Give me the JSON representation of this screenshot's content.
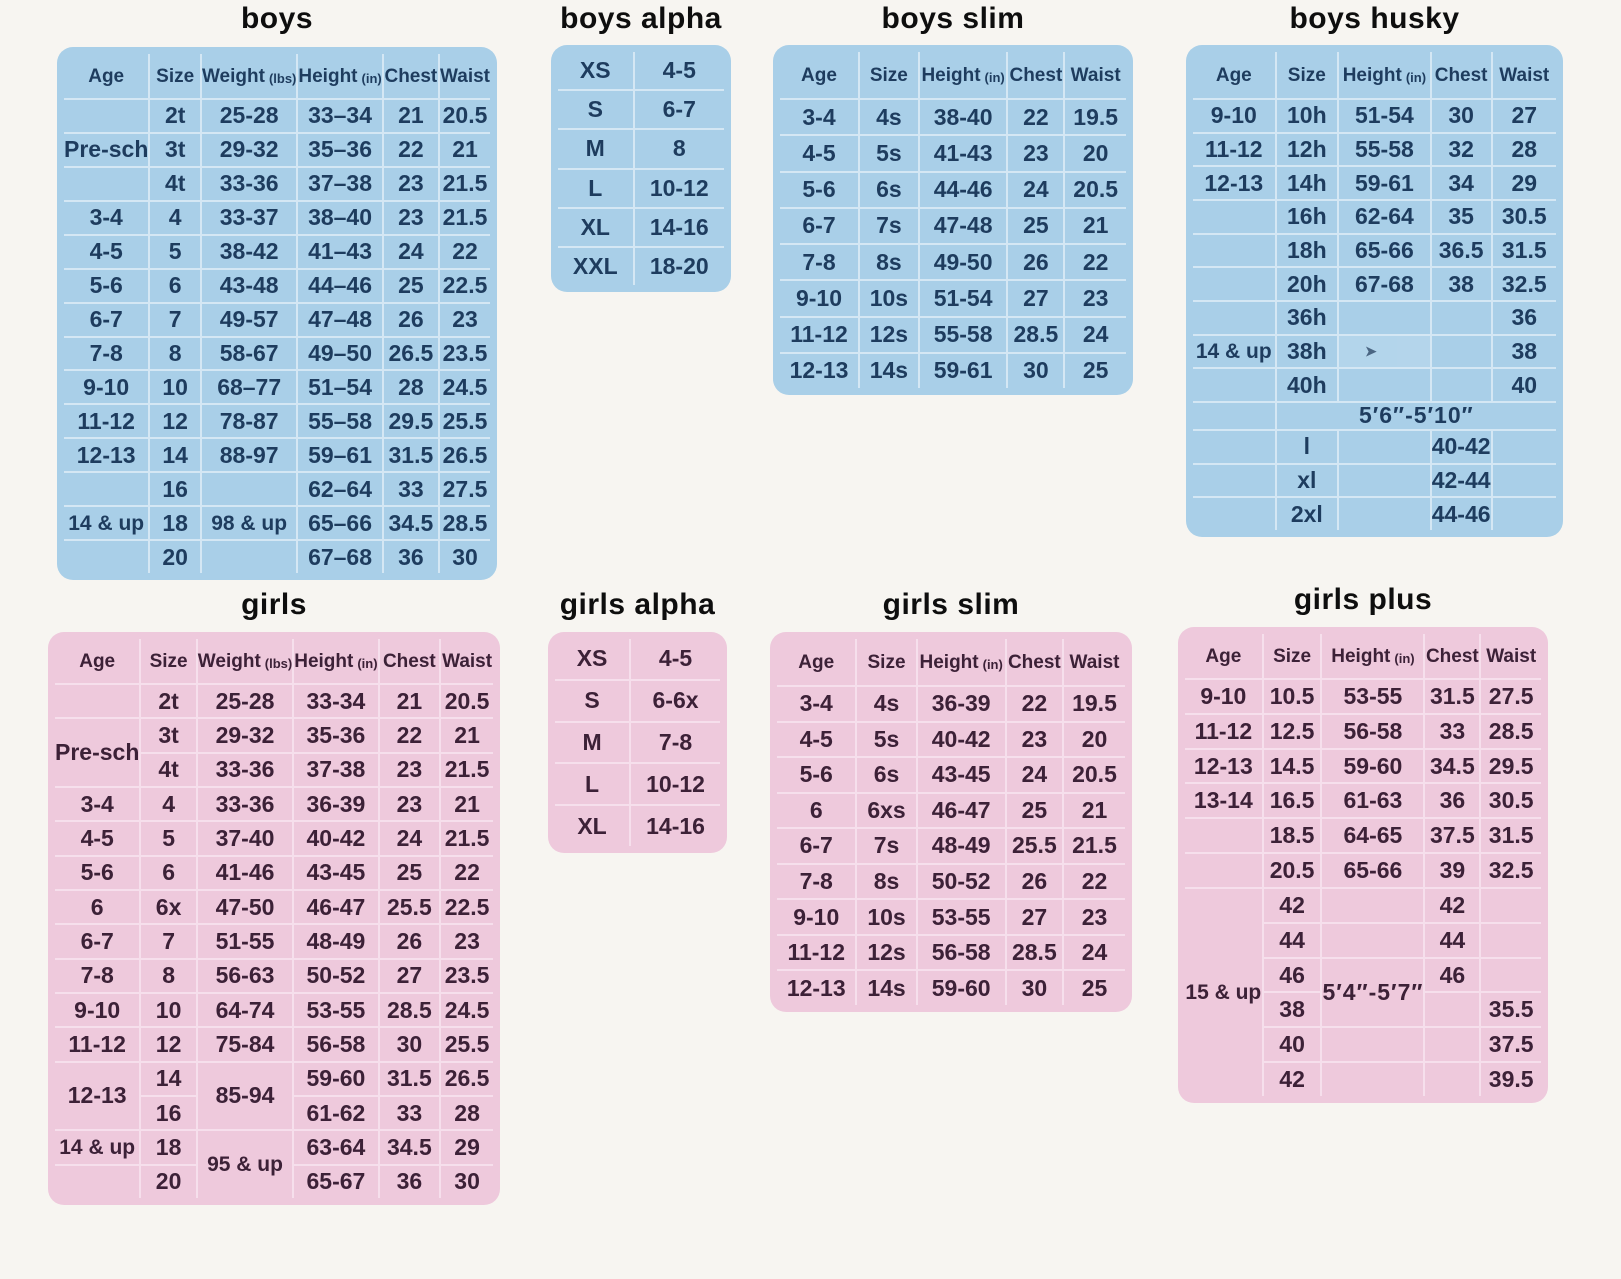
{
  "theme": {
    "paper": "#f7f5f1",
    "boys_bg": "#a9cfe8",
    "boys_line": "#d4e7f4",
    "boys_ink": "#1e3c5e",
    "girls_bg": "#eec9dc",
    "girls_line": "#f6dfec",
    "girls_ink": "#3c2137",
    "title_ink": "#0e0e0e"
  },
  "panels": {
    "boys": {
      "title": "boys",
      "header": true,
      "rows": [
        [
          "Age",
          "Size",
          {
            "t": "Weight",
            "sub": "(lbs)"
          },
          {
            "t": "Height",
            "sub": "(in)"
          },
          "Chest",
          "Waist"
        ],
        [
          "",
          "2t",
          "25-28",
          "33–34",
          "21",
          "20.5"
        ],
        [
          "Pre-sch",
          "3t",
          "29-32",
          "35–36",
          "22",
          "21"
        ],
        [
          "",
          "4t",
          "33-36",
          "37–38",
          "23",
          "21.5"
        ],
        [
          "3-4",
          "4",
          "33-37",
          "38–40",
          "23",
          "21.5"
        ],
        [
          "4-5",
          "5",
          "38-42",
          "41–43",
          "24",
          "22"
        ],
        [
          "5-6",
          "6",
          "43-48",
          "44–46",
          "25",
          "22.5"
        ],
        [
          "6-7",
          "7",
          "49-57",
          "47–48",
          "26",
          "23"
        ],
        [
          "7-8",
          "8",
          "58-67",
          "49–50",
          "26.5",
          "23.5"
        ],
        [
          "9-10",
          "10",
          "68–77",
          "51–54",
          "28",
          "24.5"
        ],
        [
          "11-12",
          "12",
          "78-87",
          "55–58",
          "29.5",
          "25.5"
        ],
        [
          "12-13",
          "14",
          "88-97",
          "59–61",
          "31.5",
          "26.5"
        ],
        [
          "",
          "16",
          "",
          "62–64",
          "33",
          "27.5"
        ],
        [
          {
            "t": "14 & up",
            "cls": "small"
          },
          "18",
          {
            "t": "98 & up",
            "cls": "small"
          },
          "65–66",
          "34.5",
          "28.5"
        ],
        [
          "",
          "20",
          "",
          "67–68",
          "36",
          "30"
        ]
      ]
    },
    "boys_alpha": {
      "title": "boys alpha",
      "header": false,
      "rows": [
        [
          "XS",
          "4-5"
        ],
        [
          "S",
          "6-7"
        ],
        [
          "M",
          "8"
        ],
        [
          "L",
          "10-12"
        ],
        [
          "XL",
          "14-16"
        ],
        [
          "XXL",
          "18-20"
        ]
      ]
    },
    "boys_slim": {
      "title": "boys slim",
      "header": true,
      "rows": [
        [
          "Age",
          "Size",
          {
            "t": "Height",
            "sub": "(in)"
          },
          "Chest",
          "Waist"
        ],
        [
          "3-4",
          "4s",
          "38-40",
          "22",
          "19.5"
        ],
        [
          "4-5",
          "5s",
          "41-43",
          "23",
          "20"
        ],
        [
          "5-6",
          "6s",
          "44-46",
          "24",
          "20.5"
        ],
        [
          "6-7",
          "7s",
          "47-48",
          "25",
          "21"
        ],
        [
          "7-8",
          "8s",
          "49-50",
          "26",
          "22"
        ],
        [
          "9-10",
          "10s",
          "51-54",
          "27",
          "23"
        ],
        [
          "11-12",
          "12s",
          "55-58",
          "28.5",
          "24"
        ],
        [
          "12-13",
          "14s",
          "59-61",
          "30",
          "25"
        ]
      ]
    },
    "boys_husky": {
      "title": "boys husky",
      "header": true,
      "rows": [
        [
          "Age",
          "Size",
          {
            "t": "Height",
            "sub": "(in)"
          },
          "Chest",
          "Waist"
        ],
        [
          "9-10",
          "10h",
          "51-54",
          "30",
          "27"
        ],
        [
          "11-12",
          "12h",
          "55-58",
          "32",
          "28"
        ],
        [
          "12-13",
          "14h",
          "59-61",
          "34",
          "29"
        ],
        [
          "",
          "16h",
          "62-64",
          "35",
          "30.5"
        ],
        [
          "",
          "18h",
          "65-66",
          "36.5",
          "31.5"
        ],
        [
          "",
          "20h",
          "67-68",
          "38",
          "32.5"
        ],
        [
          "",
          "36h",
          "",
          "",
          "36"
        ],
        [
          {
            "t": "14 & up",
            "cls": "small"
          },
          "38h",
          {
            "t": "➤",
            "cls": "arrow",
            "n": "arrow-mark"
          },
          "",
          "38"
        ],
        [
          "",
          "40h",
          "",
          "",
          "40"
        ],
        [
          "",
          {
            "t": "5′6″-5′10″",
            "cs": 4,
            "cls": "note",
            "n": "height-range-note"
          },
          null,
          null,
          null
        ],
        [
          "",
          "l",
          "",
          "40-42",
          ""
        ],
        [
          "",
          "xl",
          "",
          "42-44",
          ""
        ],
        [
          "",
          "2xl",
          "",
          "44-46",
          ""
        ]
      ]
    },
    "girls": {
      "title": "girls",
      "header": true,
      "rows": [
        [
          "Age",
          "Size",
          {
            "t": "Weight",
            "sub": "(lbs)"
          },
          {
            "t": "Height",
            "sub": "(in)"
          },
          "Chest",
          "Waist"
        ],
        [
          "",
          "2t",
          "25-28",
          "33-34",
          "21",
          "20.5"
        ],
        [
          {
            "t": "Pre-sch",
            "rs": 2
          },
          "3t",
          "29-32",
          "35-36",
          "22",
          "21"
        ],
        [
          null,
          "4t",
          "33-36",
          "37-38",
          "23",
          "21.5"
        ],
        [
          "3-4",
          "4",
          "33-36",
          "36-39",
          "23",
          "21"
        ],
        [
          "4-5",
          "5",
          "37-40",
          "40-42",
          "24",
          "21.5"
        ],
        [
          "5-6",
          "6",
          "41-46",
          "43-45",
          "25",
          "22"
        ],
        [
          "6",
          "6x",
          "47-50",
          "46-47",
          "25.5",
          "22.5"
        ],
        [
          "6-7",
          "7",
          "51-55",
          "48-49",
          "26",
          "23"
        ],
        [
          "7-8",
          "8",
          "56-63",
          "50-52",
          "27",
          "23.5"
        ],
        [
          "9-10",
          "10",
          "64-74",
          "53-55",
          "28.5",
          "24.5"
        ],
        [
          "11-12",
          "12",
          "75-84",
          "56-58",
          "30",
          "25.5"
        ],
        [
          {
            "t": "12-13",
            "rs": 2
          },
          "14",
          {
            "t": "85-94",
            "rs": 2
          },
          "59-60",
          "31.5",
          "26.5"
        ],
        [
          null,
          "16",
          null,
          "61-62",
          "33",
          "28"
        ],
        [
          {
            "t": "14 & up",
            "cls": "small"
          },
          "18",
          {
            "t": "95 & up",
            "rs": 2,
            "cls": "small"
          },
          "63-64",
          "34.5",
          "29"
        ],
        [
          "",
          "20",
          null,
          "65-67",
          "36",
          "30"
        ]
      ]
    },
    "girls_alpha": {
      "title": "girls alpha",
      "header": false,
      "rows": [
        [
          "XS",
          "4-5"
        ],
        [
          "S",
          "6-6x"
        ],
        [
          "M",
          "7-8"
        ],
        [
          "L",
          "10-12"
        ],
        [
          "XL",
          "14-16"
        ]
      ]
    },
    "girls_slim": {
      "title": "girls slim",
      "header": true,
      "rows": [
        [
          "Age",
          "Size",
          {
            "t": "Height",
            "sub": "(in)"
          },
          "Chest",
          "Waist"
        ],
        [
          "3-4",
          "4s",
          "36-39",
          "22",
          "19.5"
        ],
        [
          "4-5",
          "5s",
          "40-42",
          "23",
          "20"
        ],
        [
          "5-6",
          "6s",
          "43-45",
          "24",
          "20.5"
        ],
        [
          "6",
          "6xs",
          "46-47",
          "25",
          "21"
        ],
        [
          "6-7",
          "7s",
          "48-49",
          "25.5",
          "21.5"
        ],
        [
          "7-8",
          "8s",
          "50-52",
          "26",
          "22"
        ],
        [
          "9-10",
          "10s",
          "53-55",
          "27",
          "23"
        ],
        [
          "11-12",
          "12s",
          "56-58",
          "28.5",
          "24"
        ],
        [
          "12-13",
          "14s",
          "59-60",
          "30",
          "25"
        ]
      ]
    },
    "girls_plus": {
      "title": "girls plus",
      "header": true,
      "rows": [
        [
          "Age",
          "Size",
          {
            "t": "Height",
            "sub": "(in)"
          },
          "Chest",
          "Waist"
        ],
        [
          "9-10",
          "10.5",
          "53-55",
          "31.5",
          "27.5"
        ],
        [
          "11-12",
          "12.5",
          "56-58",
          "33",
          "28.5"
        ],
        [
          "12-13",
          "14.5",
          "59-60",
          "34.5",
          "29.5"
        ],
        [
          "13-14",
          "16.5",
          "61-63",
          "36",
          "30.5"
        ],
        [
          "",
          "18.5",
          "64-65",
          "37.5",
          "31.5"
        ],
        [
          "",
          "20.5",
          "65-66",
          "39",
          "32.5"
        ],
        [
          {
            "t": "15 & up",
            "rs": 6,
            "cls": "small"
          },
          "42",
          "",
          "42",
          ""
        ],
        [
          null,
          "44",
          "",
          "44",
          ""
        ],
        [
          null,
          "46",
          {
            "t": "5′4″-5′7″",
            "rs": 2,
            "cls": "note",
            "n": "height-range-note"
          },
          "46",
          ""
        ],
        [
          null,
          "38",
          null,
          "",
          "35.5"
        ],
        [
          null,
          "40",
          "",
          "",
          "37.5"
        ],
        [
          null,
          "42",
          "",
          "",
          "39.5"
        ]
      ]
    }
  }
}
